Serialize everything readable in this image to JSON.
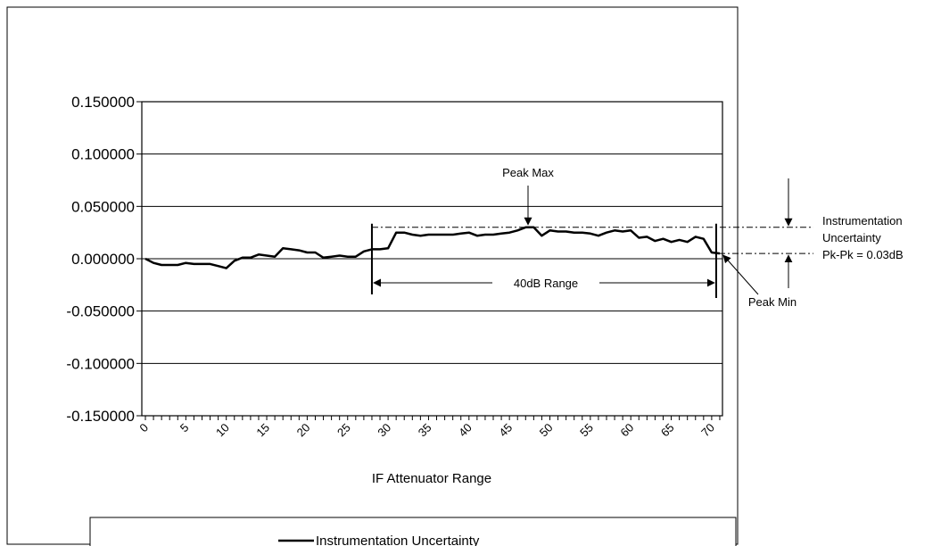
{
  "chart_data": {
    "type": "line",
    "xlabel": "IF Attenuator Range",
    "ylabel": "",
    "xlim": [
      0,
      71
    ],
    "ylim": [
      -0.15,
      0.15
    ],
    "grid": "horizontal",
    "yticks": [
      0.15,
      0.1,
      0.05,
      0.0,
      -0.05,
      -0.1,
      -0.15
    ],
    "ytick_labels": [
      "0.150000",
      "0.100000",
      "0.050000",
      "0.000000",
      "-0.050000",
      "-0.100000",
      "-0.150000"
    ],
    "xticks": [
      0,
      5,
      10,
      15,
      20,
      25,
      30,
      35,
      40,
      45,
      50,
      55,
      60,
      65,
      70
    ],
    "xtick_labels": [
      "0",
      "5",
      "10",
      "15",
      "20",
      "25",
      "30",
      "35",
      "40",
      "45",
      "50",
      "55",
      "60",
      "65",
      "70"
    ],
    "legend_position": "bottom",
    "series": [
      {
        "name": "Instrumentation Uncertainty",
        "color": "#000000",
        "x": [
          0,
          1,
          2,
          3,
          4,
          5,
          6,
          7,
          8,
          9,
          10,
          11,
          12,
          13,
          14,
          15,
          16,
          17,
          18,
          19,
          20,
          21,
          22,
          23,
          24,
          25,
          26,
          27,
          28,
          29,
          30,
          31,
          32,
          33,
          34,
          35,
          36,
          37,
          38,
          39,
          40,
          41,
          42,
          43,
          44,
          45,
          46,
          47,
          48,
          49,
          50,
          51,
          52,
          53,
          54,
          55,
          56,
          57,
          58,
          59,
          60,
          61,
          62,
          63,
          64,
          65,
          66,
          67,
          68,
          69,
          70,
          71
        ],
        "values": [
          0.0,
          -0.004,
          -0.006,
          -0.006,
          -0.006,
          -0.004,
          -0.005,
          -0.005,
          -0.005,
          -0.007,
          -0.009,
          -0.002,
          0.001,
          0.001,
          0.004,
          0.003,
          0.002,
          0.01,
          0.009,
          0.008,
          0.006,
          0.006,
          0.001,
          0.002,
          0.003,
          0.002,
          0.002,
          0.007,
          0.009,
          0.009,
          0.01,
          0.025,
          0.025,
          0.023,
          0.022,
          0.023,
          0.023,
          0.023,
          0.023,
          0.024,
          0.025,
          0.022,
          0.023,
          0.023,
          0.024,
          0.025,
          0.027,
          0.03,
          0.03,
          0.022,
          0.027,
          0.026,
          0.026,
          0.025,
          0.025,
          0.024,
          0.022,
          0.025,
          0.027,
          0.026,
          0.027,
          0.02,
          0.021,
          0.017,
          0.019,
          0.016,
          0.018,
          0.016,
          0.021,
          0.019,
          0.006,
          0.005
        ]
      }
    ],
    "annotations": {
      "peak_max": "Peak Max",
      "peak_min": "Peak Min",
      "range": "40dB Range",
      "uncertainty_lines": [
        "Instrumentation",
        "Uncertainty",
        "Pk-Pk = 0.03dB"
      ],
      "peak_max_value": 0.03,
      "peak_min_value": 0.005,
      "range_x": [
        28,
        71
      ]
    }
  }
}
